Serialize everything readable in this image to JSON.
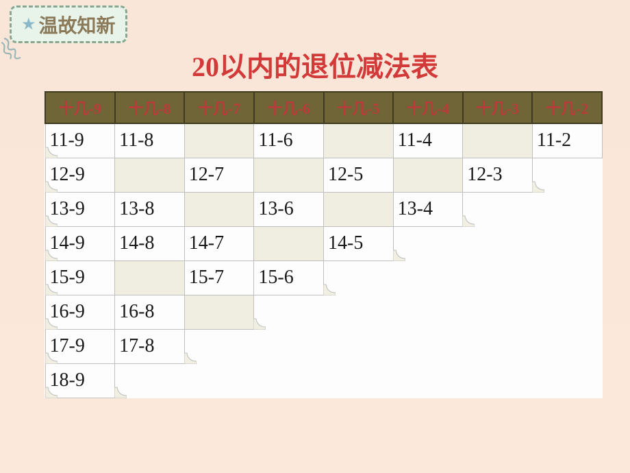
{
  "tag": {
    "star": "★",
    "label": "温故知新"
  },
  "title": "20以内的退位减法表",
  "table": {
    "headers": [
      "十几-9",
      "十几-8",
      "十几-7",
      "十几-6",
      "十几-5",
      "十几-4",
      "十几-3",
      "十几-2"
    ],
    "rows": [
      [
        {
          "v": "11-9"
        },
        {
          "v": "11-8"
        },
        {
          "v": "",
          "blank": true
        },
        {
          "v": "11-6"
        },
        {
          "v": "",
          "blank": true
        },
        {
          "v": "11-4"
        },
        {
          "v": "",
          "blank": true
        },
        {
          "v": "11-2"
        }
      ],
      [
        {
          "v": "12-9"
        },
        {
          "v": "",
          "blank": true
        },
        {
          "v": "12-7"
        },
        {
          "v": "",
          "blank": true
        },
        {
          "v": "12-5"
        },
        {
          "v": "",
          "blank": true
        },
        {
          "v": "12-3"
        },
        {
          "step": true
        }
      ],
      [
        {
          "v": "13-9"
        },
        {
          "v": "13-8"
        },
        {
          "v": "",
          "blank": true
        },
        {
          "v": "13-6"
        },
        {
          "v": "",
          "blank": true
        },
        {
          "v": "13-4"
        },
        {
          "step": true
        },
        {
          "step": true
        }
      ],
      [
        {
          "v": "14-9"
        },
        {
          "v": "14-8"
        },
        {
          "v": "14-7"
        },
        {
          "v": "",
          "blank": true
        },
        {
          "v": "14-5"
        },
        {
          "step": true
        },
        {
          "step": true
        },
        {
          "step": true
        }
      ],
      [
        {
          "v": "15-9"
        },
        {
          "v": "",
          "blank": true
        },
        {
          "v": "15-7"
        },
        {
          "v": "15-6"
        },
        {
          "step": true
        },
        {
          "step": true
        },
        {
          "step": true
        },
        {
          "step": true
        }
      ],
      [
        {
          "v": "16-9"
        },
        {
          "v": "16-8"
        },
        {
          "v": "",
          "blank": true
        },
        {
          "step": true
        },
        {
          "step": true
        },
        {
          "step": true
        },
        {
          "step": true
        },
        {
          "step": true
        }
      ],
      [
        {
          "v": "17-9"
        },
        {
          "v": "17-8"
        },
        {
          "step": true
        },
        {
          "step": true
        },
        {
          "step": true
        },
        {
          "step": true
        },
        {
          "step": true
        },
        {
          "step": true
        }
      ],
      [
        {
          "v": "18-9"
        },
        {
          "step": true
        },
        {
          "step": true
        },
        {
          "step": true
        },
        {
          "step": true
        },
        {
          "step": true
        },
        {
          "step": true
        },
        {
          "step": true
        }
      ]
    ]
  },
  "colors": {
    "title": "#d23a3a",
    "header_bg": "#6f6537",
    "header_text": "#bc3a3a",
    "cell_text": "#181818",
    "blank_bg": "#efeee0",
    "cell_bg": "#fdfdfd",
    "border": "#bfbfbf"
  }
}
